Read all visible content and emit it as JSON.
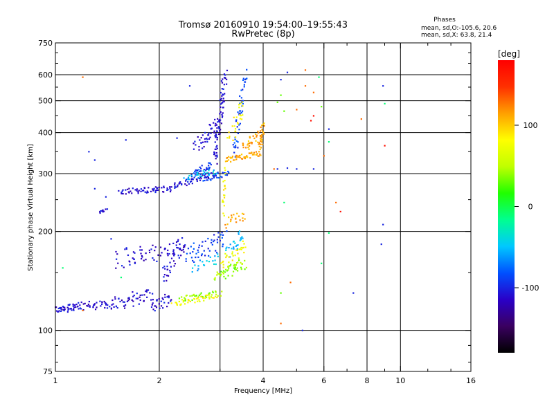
{
  "chart_data": {
    "type": "scatter",
    "title": "Tromsø 20160910 19:54:00–19:55:43",
    "subtitle": "RwPretec (8p)",
    "stats_header": "Phases",
    "stats_line1": "mean, sd,O:-105.6, 20.6",
    "stats_line2": "mean, sd,X:  63.8, 21.4",
    "xlabel": "Frequency [MHz]",
    "ylabel": "Stationary phase Virtual Height [km]",
    "x_scale": "log",
    "y_scale": "log",
    "xlim": [
      1,
      16
    ],
    "ylim": [
      75,
      750
    ],
    "x_ticks": [
      1,
      2,
      4,
      6,
      8,
      10,
      16
    ],
    "x_tick_labels": [
      "1",
      "2",
      "4",
      "6",
      "8",
      "10",
      "16"
    ],
    "x_grid": [
      2,
      3,
      4,
      6,
      8,
      10
    ],
    "y_ticks": [
      75,
      100,
      200,
      300,
      400,
      500,
      600,
      750
    ],
    "y_tick_labels": [
      "75",
      "100",
      "200",
      "300",
      "400",
      "500",
      "600",
      "750"
    ],
    "y_grid": [
      100,
      200,
      300,
      400,
      500,
      600
    ],
    "grid": true,
    "colorbar": {
      "label": "[deg]",
      "range": [
        -180,
        180
      ],
      "ticks": [
        -100,
        0,
        100
      ],
      "tick_labels": [
        "-100",
        "0",
        "100"
      ],
      "colors": [
        "#000000",
        "#3a0060",
        "#2a00c8",
        "#0050ff",
        "#00c8ff",
        "#00ff90",
        "#20ff00",
        "#c0ff00",
        "#ffff00",
        "#ffa000",
        "#ff3000",
        "#ff0000"
      ]
    },
    "series": [
      {
        "phase": -110,
        "traces": [
          {
            "from": [
              1.0,
              115
            ],
            "to": [
              1.15,
              118
            ],
            "n": 40,
            "jx": 0.015,
            "jy": 0.025
          },
          {
            "from": [
              1.15,
              118
            ],
            "to": [
              1.45,
              120
            ],
            "n": 40,
            "jx": 0.015,
            "jy": 0.03
          },
          {
            "from": [
              1.45,
              120
            ],
            "to": [
              1.9,
              128
            ],
            "n": 50,
            "jx": 0.02,
            "jy": 0.05
          },
          {
            "from": [
              1.9,
              118
            ],
            "to": [
              2.15,
              125
            ],
            "n": 30,
            "jx": 0.015,
            "jy": 0.04
          },
          {
            "from": [
              1.5,
              165
            ],
            "to": [
              2.3,
              175
            ],
            "n": 60,
            "jx": 0.03,
            "jy": 0.07
          },
          {
            "from": [
              2.05,
              145
            ],
            "to": [
              2.35,
              185
            ],
            "n": 40,
            "jx": 0.02,
            "jy": 0.06
          },
          {
            "from": [
              1.55,
              265
            ],
            "to": [
              2.2,
              270
            ],
            "n": 60,
            "jx": 0.02,
            "jy": 0.02
          },
          {
            "from": [
              2.2,
              275
            ],
            "to": [
              2.9,
              300
            ],
            "n": 50,
            "jx": 0.02,
            "jy": 0.02
          },
          {
            "from": [
              2.9,
              330
            ],
            "to": [
              3.1,
              600
            ],
            "n": 80,
            "jx": 0.015,
            "jy": 0.05
          },
          {
            "from": [
              2.55,
              360
            ],
            "to": [
              2.95,
              420
            ],
            "n": 40,
            "jx": 0.02,
            "jy": 0.05
          },
          {
            "from": [
              1.35,
              230
            ],
            "to": [
              1.4,
              232
            ],
            "n": 10,
            "jx": 0.01,
            "jy": 0.01
          }
        ]
      },
      {
        "phase": -90,
        "traces": [
          {
            "from": [
              2.4,
              170
            ],
            "to": [
              3.1,
              190
            ],
            "n": 50,
            "jx": 0.03,
            "jy": 0.07
          },
          {
            "from": [
              2.7,
              290
            ],
            "to": [
              3.15,
              300
            ],
            "n": 30,
            "jx": 0.02,
            "jy": 0.02
          },
          {
            "from": [
              3.3,
              350
            ],
            "to": [
              3.55,
              600
            ],
            "n": 50,
            "jx": 0.015,
            "jy": 0.06
          },
          {
            "from": [
              2.5,
              300
            ],
            "to": [
              2.85,
              320
            ],
            "n": 30,
            "jx": 0.02,
            "jy": 0.02
          }
        ]
      },
      {
        "phase": -50,
        "traces": [
          {
            "from": [
              2.4,
              290
            ],
            "to": [
              2.9,
              305
            ],
            "n": 30,
            "jx": 0.02,
            "jy": 0.02
          },
          {
            "from": [
              2.5,
              155
            ],
            "to": [
              3.0,
              165
            ],
            "n": 20,
            "jx": 0.02,
            "jy": 0.04
          },
          {
            "from": [
              3.15,
              170
            ],
            "to": [
              3.5,
              200
            ],
            "n": 25,
            "jx": 0.02,
            "jy": 0.05
          }
        ]
      },
      {
        "phase": 40,
        "traces": [
          {
            "from": [
              2.9,
              145
            ],
            "to": [
              3.55,
              160
            ],
            "n": 50,
            "jx": 0.02,
            "jy": 0.04
          },
          {
            "from": [
              2.3,
              125
            ],
            "to": [
              3.0,
              130
            ],
            "n": 40,
            "jx": 0.02,
            "jy": 0.02
          }
        ]
      },
      {
        "phase": 80,
        "traces": [
          {
            "from": [
              2.2,
              120
            ],
            "to": [
              2.9,
              128
            ],
            "n": 40,
            "jx": 0.02,
            "jy": 0.02
          },
          {
            "from": [
              3.05,
              230
            ],
            "to": [
              3.1,
              300
            ],
            "n": 20,
            "jx": 0.01,
            "jy": 0.05
          },
          {
            "from": [
              3.05,
              160
            ],
            "to": [
              3.55,
              180
            ],
            "n": 30,
            "jx": 0.02,
            "jy": 0.04
          },
          {
            "from": [
              3.2,
              390
            ],
            "to": [
              3.5,
              480
            ],
            "n": 25,
            "jx": 0.02,
            "jy": 0.05
          }
        ]
      },
      {
        "phase": 110,
        "traces": [
          {
            "from": [
              3.1,
              330
            ],
            "to": [
              3.9,
              345
            ],
            "n": 50,
            "jx": 0.015,
            "jy": 0.02
          },
          {
            "from": [
              3.9,
              345
            ],
            "to": [
              4.0,
              420
            ],
            "n": 30,
            "jx": 0.01,
            "jy": 0.04
          },
          {
            "from": [
              3.5,
              360
            ],
            "to": [
              3.9,
              395
            ],
            "n": 30,
            "jx": 0.02,
            "jy": 0.03
          },
          {
            "from": [
              3.15,
              210
            ],
            "to": [
              3.5,
              225
            ],
            "n": 20,
            "jx": 0.02,
            "jy": 0.04
          }
        ]
      },
      {
        "phase": -100,
        "points": [
          [
            1.25,
            350
          ],
          [
            1.6,
            380
          ],
          [
            2.25,
            385
          ],
          [
            2.45,
            555
          ],
          [
            4.7,
            610
          ],
          [
            5.2,
            100
          ],
          [
            6.2,
            410
          ],
          [
            7.3,
            130
          ],
          [
            8.8,
            183
          ],
          [
            8.9,
            210
          ],
          [
            8.9,
            555
          ],
          [
            4.4,
            310
          ],
          [
            4.7,
            312
          ],
          [
            5.0,
            310
          ],
          [
            5.6,
            310
          ],
          [
            1.7,
            160
          ],
          [
            1.3,
            330
          ],
          [
            1.45,
            190
          ],
          [
            4.5,
            580
          ],
          [
            1.3,
            270
          ],
          [
            1.4,
            255
          ]
        ]
      },
      {
        "phase": -10,
        "points": [
          [
            1.05,
            155
          ],
          [
            1.55,
            145
          ],
          [
            4.6,
            245
          ],
          [
            6.2,
            375
          ],
          [
            6.2,
            198
          ],
          [
            5.9,
            160
          ],
          [
            9.0,
            490
          ],
          [
            5.8,
            590
          ]
        ]
      },
      {
        "phase": 30,
        "points": [
          [
            4.5,
            520
          ],
          [
            4.4,
            495
          ],
          [
            5.9,
            480
          ],
          [
            4.6,
            465
          ],
          [
            4.5,
            130
          ]
        ]
      },
      {
        "phase": 130,
        "points": [
          [
            1.2,
            590
          ],
          [
            5.3,
            620
          ],
          [
            7.7,
            440
          ],
          [
            4.3,
            310
          ],
          [
            4.8,
            140
          ],
          [
            4.5,
            105
          ],
          [
            6.5,
            245
          ],
          [
            5.0,
            470
          ],
          [
            5.3,
            555
          ],
          [
            6.0,
            340
          ],
          [
            5.6,
            530
          ],
          [
            1.2,
            115
          ]
        ]
      },
      {
        "phase": 170,
        "points": [
          [
            5.5,
            435
          ],
          [
            5.6,
            450
          ],
          [
            6.7,
            230
          ],
          [
            9.0,
            365
          ]
        ]
      }
    ]
  }
}
